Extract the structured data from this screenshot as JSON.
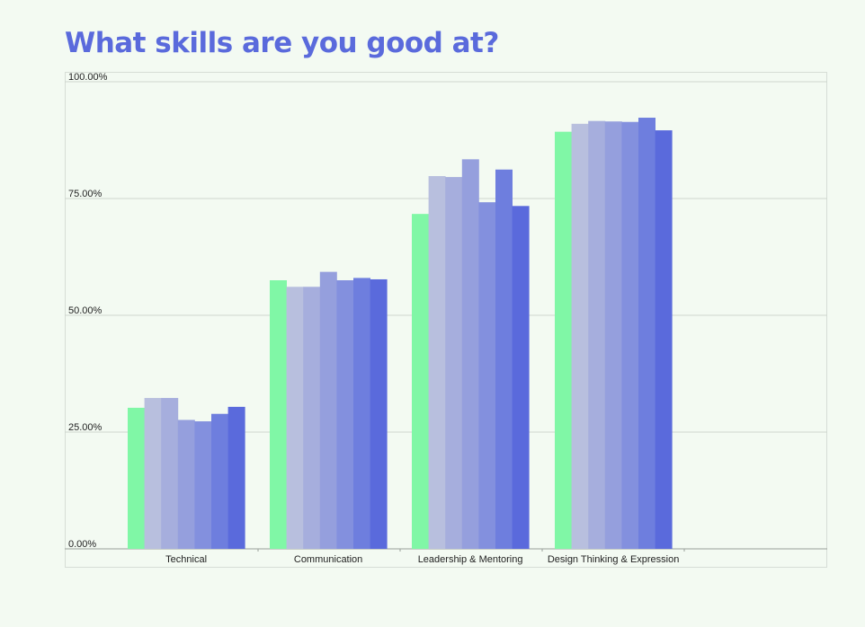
{
  "chart_data": {
    "type": "bar",
    "title": "What skills are you good at?",
    "categories": [
      "Technical",
      "Communication",
      "Leadership & Mentoring",
      "Design Thinking & Expression"
    ],
    "ylim": [
      0,
      100
    ],
    "yticks": [
      "0.00%",
      "25.00%",
      "50.00%",
      "75.00%",
      "100.00%"
    ],
    "ytick_values": [
      0,
      25,
      50,
      75,
      100
    ],
    "grid": true,
    "legend": "none",
    "series": [
      {
        "values": [
          30.2,
          57.5,
          71.7,
          89.3
        ],
        "color": "#80f7a6"
      },
      {
        "values": [
          32.3,
          56.1,
          79.8,
          91.0
        ],
        "color": "#b8bfde"
      },
      {
        "values": [
          32.3,
          56.1,
          79.6,
          91.6
        ],
        "color": "#a6aedd"
      },
      {
        "values": [
          27.6,
          59.3,
          83.4,
          91.5
        ],
        "color": "#959fdd"
      },
      {
        "values": [
          27.3,
          57.5,
          74.2,
          91.4
        ],
        "color": "#8390de"
      },
      {
        "values": [
          28.9,
          58.0,
          81.2,
          92.3
        ],
        "color": "#6e7ede"
      },
      {
        "values": [
          30.4,
          57.7,
          73.4,
          89.6
        ],
        "color": "#5a6adc"
      }
    ]
  },
  "colors": {
    "title": "#5a6adc",
    "grid": "#cfd6cf",
    "axis": "#9aa09a",
    "text": "#222222"
  }
}
